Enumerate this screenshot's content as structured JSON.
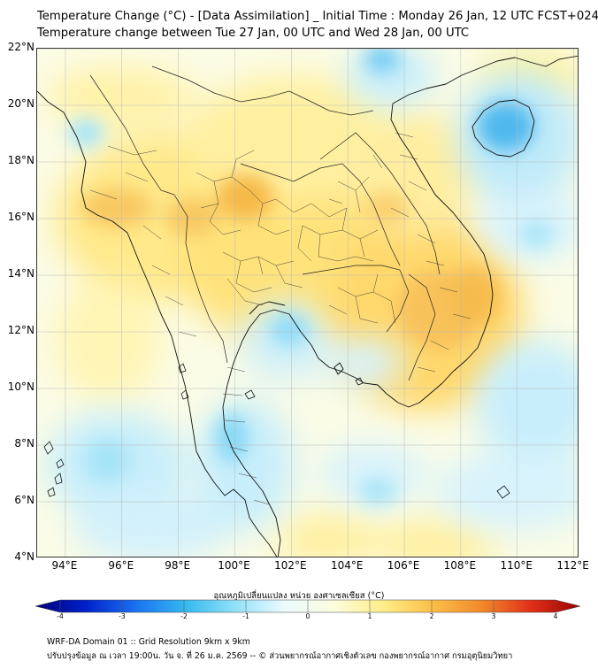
{
  "title": {
    "line1": "Temperature Change (°C) - [Data Assimilation] _ Initial Time : Monday 26 Jan, 12 UTC FCST+024",
    "line2": "Temperature change between Tue 27 Jan, 00 UTC and Wed 28 Jan, 00 UTC"
  },
  "map": {
    "lat_ticks": [
      "22°N",
      "20°N",
      "18°N",
      "16°N",
      "14°N",
      "12°N",
      "10°N",
      "8°N",
      "6°N",
      "4°N"
    ],
    "lon_ticks": [
      "94°E",
      "96°E",
      "98°E",
      "100°E",
      "102°E",
      "104°E",
      "106°E",
      "108°E",
      "110°E",
      "112°E"
    ],
    "lat_range": [
      4,
      22
    ],
    "lon_range": [
      93,
      112.2
    ],
    "grid": true,
    "colors": {
      "land_fill": "#ffef9a",
      "warm_core": "#f6b94a",
      "cool_light": "#d8f3fc",
      "cool_mid": "#8fdcf4",
      "cool_strong": "#36a9e8",
      "coastline": "#111111",
      "gridline": "#b9b9b9"
    }
  },
  "colorbar": {
    "label": "อุณหภูมิเปลี่ยนแปลง หน่วย องศาเซลเซียส (°C)",
    "ticks": [
      "-4",
      "-3",
      "-2",
      "-1",
      "0",
      "1",
      "2",
      "3",
      "4"
    ],
    "range": [
      -4,
      4
    ],
    "colors": [
      "#00007a",
      "#0020c8",
      "#1a6ff0",
      "#33b7ee",
      "#8fe0f8",
      "#eafaff",
      "#fbfde0",
      "#ffee8a",
      "#fcc04a",
      "#f28a2a",
      "#e03018",
      "#9b0000"
    ]
  },
  "footer": {
    "line1": "WRF-DA Domain 01 :: Grid Resolution 9km x 9km",
    "line2": "ปรับปรุงข้อมูล ณ เวลา 19:00น. วัน จ. ที่ 26 ม.ค. 2569 -- © ส่วนพยากรณ์อากาศเชิงตัวเลข กองพยากรณ์อากาศ กรมอุตุนิยมวิทยา"
  }
}
